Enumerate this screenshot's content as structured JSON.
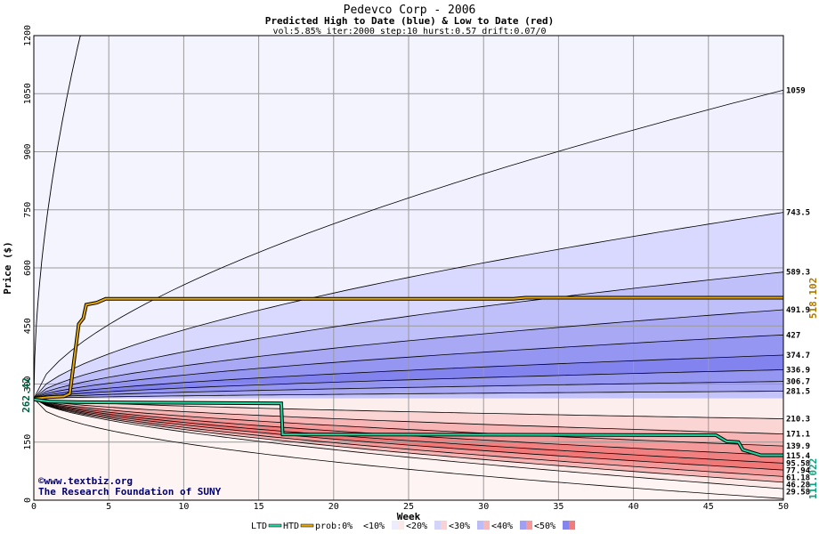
{
  "chart_data": {
    "type": "area",
    "title": "Pedevco Corp - 2006",
    "subtitle": "Predicted High to Date (blue) &  Low to Date (red)",
    "params": "vol:5.85% iter:2000 step:10 hurst:0.57 drift:0.07/0",
    "xlabel": "Week",
    "ylabel": "Price ($)",
    "xlim": [
      0,
      50
    ],
    "ylim": [
      0,
      1200
    ],
    "xticks": [
      0,
      5,
      10,
      15,
      20,
      25,
      30,
      35,
      40,
      45,
      50
    ],
    "yticks": [
      0,
      150,
      300,
      450,
      600,
      750,
      900,
      1050,
      1200
    ],
    "grid": true,
    "start_price": 262.42,
    "start_label": "262.42",
    "htd_final": 518.102,
    "htd_label": "518.102",
    "ltd_final": 111.022,
    "ltd_label": "111.022",
    "high_quantiles": [
      {
        "label": "1059",
        "end": 1059,
        "prob": 0,
        "color": "#f0f0ff"
      },
      {
        "label": "743.5",
        "end": 743.5,
        "prob": 10,
        "color": "#d9d9ff"
      },
      {
        "label": "589.3",
        "end": 589.3,
        "prob": 20,
        "color": "#bfbff9"
      },
      {
        "label": "491.9",
        "end": 491.9,
        "prob": 30,
        "color": "#a8a8f5"
      },
      {
        "label": "427",
        "end": 427,
        "prob": 40,
        "color": "#9595f2"
      },
      {
        "label": "374.7",
        "end": 374.7,
        "prob": 50,
        "color": "#8383ef"
      },
      {
        "label": "336.9",
        "end": 336.9,
        "prob": 40,
        "color": "#9595f2"
      },
      {
        "label": "306.7",
        "end": 306.7,
        "prob": 30,
        "color": "#a8a8f5"
      },
      {
        "label": "281.5",
        "end": 281.5,
        "prob": 20,
        "color": "#c4c4fa"
      }
    ],
    "low_quantiles": [
      {
        "label": "210.3",
        "end": 210.3,
        "prob": 10,
        "color": "#fdeeee"
      },
      {
        "label": "171.1",
        "end": 171.1,
        "prob": 20,
        "color": "#fbd4d4"
      },
      {
        "label": "139.9",
        "end": 139.9,
        "prob": 30,
        "color": "#f8b5b5"
      },
      {
        "label": "115.4",
        "end": 115.4,
        "prob": 40,
        "color": "#f59a9a"
      },
      {
        "label": "95.58",
        "end": 95.58,
        "prob": 50,
        "color": "#f28080"
      },
      {
        "label": "77.94",
        "end": 77.94,
        "prob": 50,
        "color": "#f27878"
      },
      {
        "label": "61.18",
        "end": 61.18,
        "prob": 40,
        "color": "#f59a9a"
      },
      {
        "label": "46.28",
        "end": 46.28,
        "prob": 30,
        "color": "#f8b5b5"
      },
      {
        "label": "29.58",
        "end": 29.58,
        "prob": 10,
        "color": "#fde8e8"
      }
    ],
    "htd_series": {
      "name": "HTD",
      "color": "#e8a800",
      "points": [
        [
          0,
          262
        ],
        [
          1,
          266
        ],
        [
          2,
          268
        ],
        [
          2.4,
          275
        ],
        [
          3,
          455
        ],
        [
          3.3,
          470
        ],
        [
          3.5,
          505
        ],
        [
          4.2,
          510
        ],
        [
          4.8,
          520
        ],
        [
          32,
          520
        ],
        [
          32.8,
          523
        ],
        [
          50,
          523
        ]
      ]
    },
    "ltd_series": {
      "name": "LTD",
      "color": "#20d8a0",
      "points": [
        [
          0,
          260
        ],
        [
          1,
          255
        ],
        [
          3,
          253
        ],
        [
          16.5,
          250
        ],
        [
          16.6,
          170
        ],
        [
          45.5,
          168
        ],
        [
          46.2,
          152
        ],
        [
          47,
          150
        ],
        [
          47.3,
          130
        ],
        [
          48.5,
          116
        ],
        [
          50,
          116
        ]
      ]
    },
    "credits": [
      "©www.textbiz.org",
      "The Research Foundation of SUNY"
    ],
    "legend": {
      "ltd": "LTD",
      "htd": "HTD",
      "prob": "prob:0%",
      "items": [
        {
          "label": "<10%",
          "blue": "#ececfd",
          "red": "#fde8e8"
        },
        {
          "label": "<20%",
          "blue": "#d4d4fa",
          "red": "#fbd2d2"
        },
        {
          "label": "<30%",
          "blue": "#bcbcf7",
          "red": "#f8b8b8"
        },
        {
          "label": "<40%",
          "blue": "#a0a0f3",
          "red": "#f59a9a"
        },
        {
          "label": "<50%",
          "blue": "#8585ef",
          "red": "#f27c7c"
        }
      ]
    }
  }
}
